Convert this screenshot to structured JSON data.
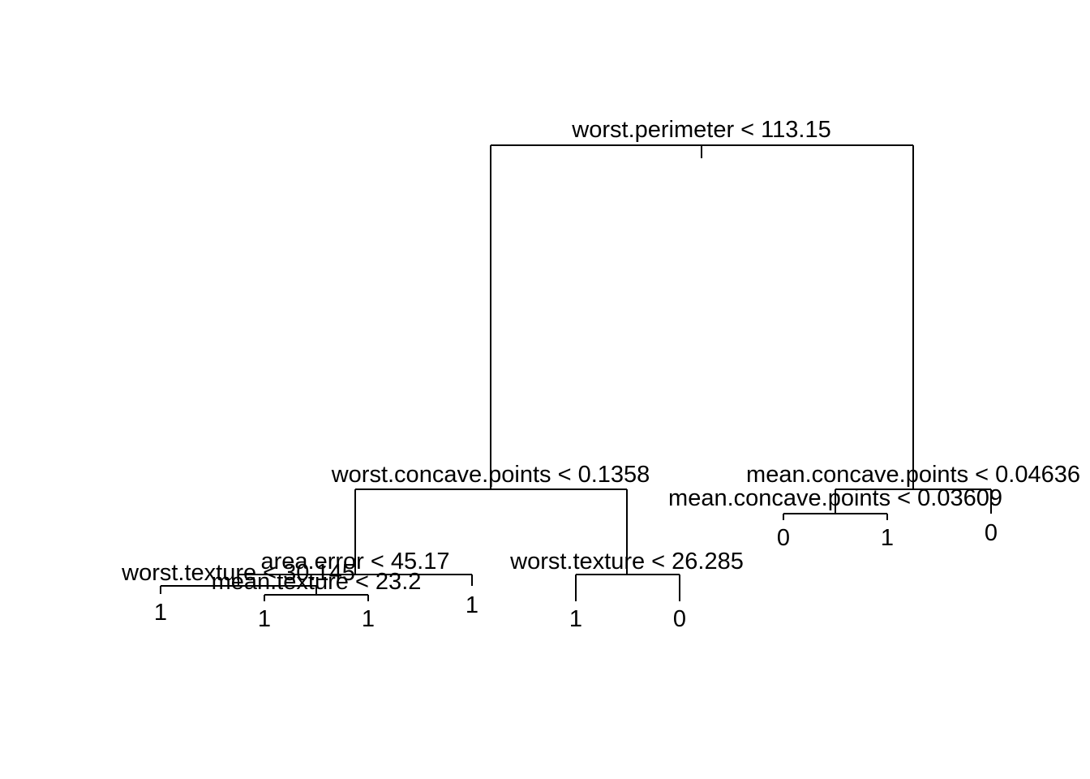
{
  "tree": {
    "type": "decision-tree",
    "root_split": "worst.perimeter < 113.15",
    "nodes": {
      "n1": {
        "split": "worst.perimeter < 113.15"
      },
      "n2": {
        "split": "worst.concave.points < 0.1358"
      },
      "n3": {
        "split": "mean.concave.points < 0.04636"
      },
      "n4": {
        "split": "area.error < 45.17"
      },
      "n5": {
        "split": "worst.texture < 26.285"
      },
      "n6": {
        "split": "mean.concave.points < 0.03609"
      },
      "n7": {
        "split": "worst.texture < 30.145"
      },
      "n8": {
        "split": "mean.texture < 23.2"
      }
    },
    "leaves": {
      "leaf_wt30_left": "1",
      "leaf_mt_left": "1",
      "leaf_mt_right": "1",
      "leaf_ae_right": "1",
      "leaf_wt26_left": "1",
      "leaf_wt26_right": "0",
      "leaf_mcp036_left": "0",
      "leaf_mcp036_right": "1",
      "leaf_mcp046_right": "0"
    },
    "edges": [
      [
        "n1",
        "n2"
      ],
      [
        "n1",
        "n3"
      ],
      [
        "n2",
        "n4"
      ],
      [
        "n2",
        "n5"
      ],
      [
        "n3",
        "n6"
      ],
      [
        "n3",
        "leaf_mcp046_right"
      ],
      [
        "n4",
        "n7"
      ],
      [
        "n4",
        "leaf_ae_right"
      ],
      [
        "n7",
        "leaf_wt30_left"
      ],
      [
        "n7",
        "n8"
      ],
      [
        "n8",
        "leaf_mt_left"
      ],
      [
        "n8",
        "leaf_mt_right"
      ],
      [
        "n5",
        "leaf_wt26_left"
      ],
      [
        "n5",
        "leaf_wt26_right"
      ],
      [
        "n6",
        "leaf_mcp036_left"
      ],
      [
        "n6",
        "leaf_mcp036_right"
      ]
    ]
  }
}
